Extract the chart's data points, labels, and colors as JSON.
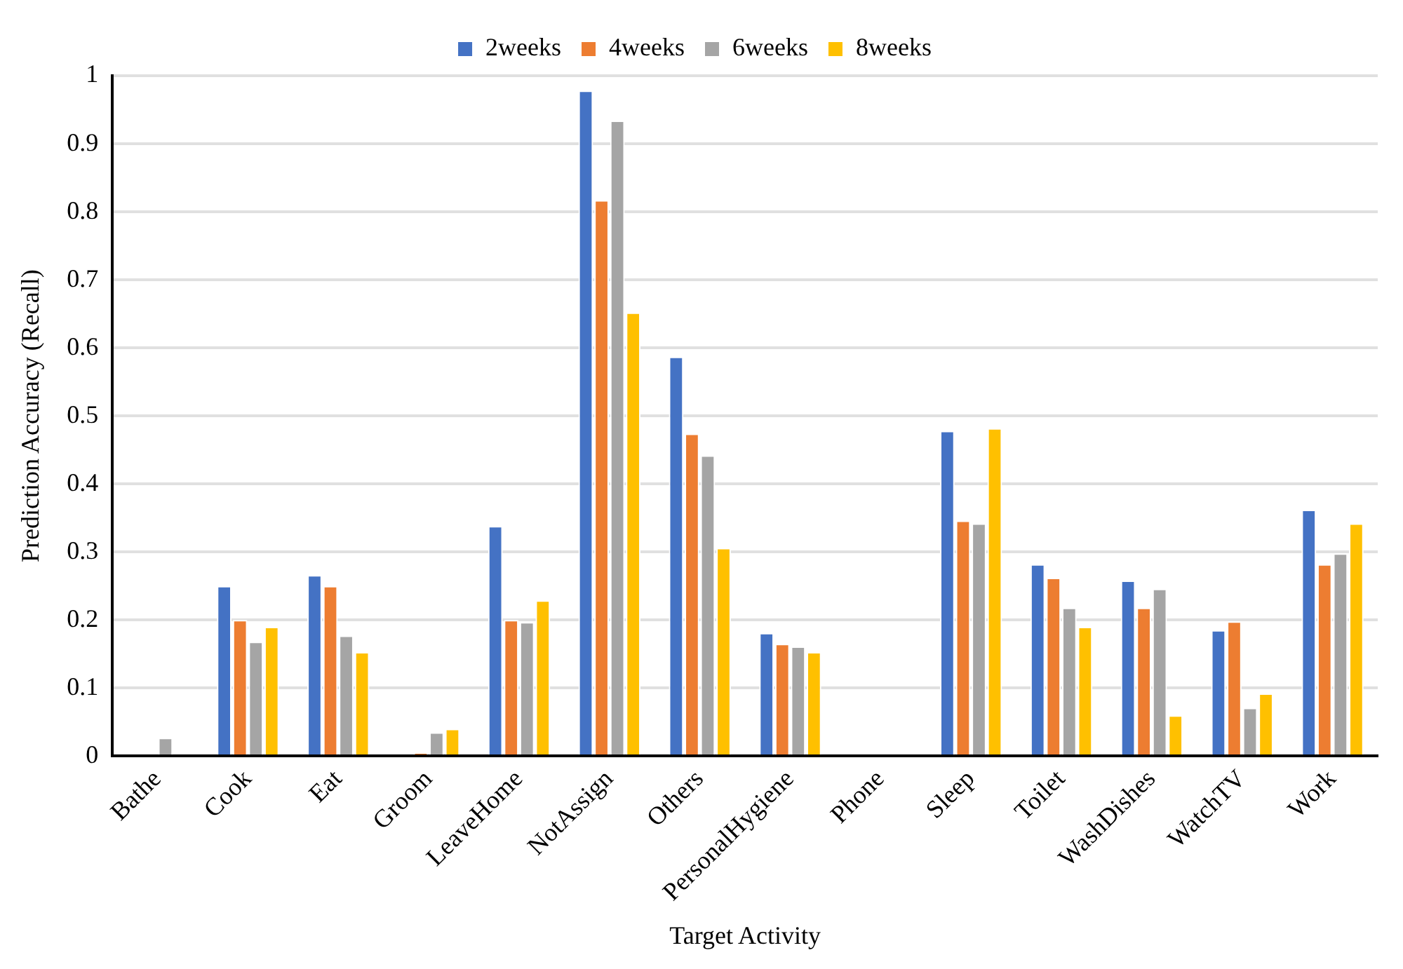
{
  "chart_data": {
    "type": "bar",
    "xlabel": "Target Activity",
    "ylabel": "Prediction Accuracy (Recall)",
    "categories": [
      "Bathe",
      "Cook",
      "Eat",
      "Groom",
      "LeaveHome",
      "NotAssign",
      "Others",
      "PersonalHygiene",
      "Phone",
      "Sleep",
      "Toilet",
      "WashDishes",
      "WatchTV",
      "Work"
    ],
    "series": [
      {
        "name": "2weeks",
        "color": "#4472c4",
        "values": [
          0,
          0.25,
          0.266,
          0,
          0.338,
          0.978,
          0.587,
          0.181,
          0,
          0.478,
          0.282,
          0.258,
          0.185,
          0.362
        ]
      },
      {
        "name": "4weeks",
        "color": "#ed7d31",
        "values": [
          null,
          0.2,
          0.25,
          0.005,
          0.2,
          0.817,
          0.474,
          0.165,
          0,
          0.346,
          0.262,
          0.218,
          0.198,
          0.282
        ]
      },
      {
        "name": "6weeks",
        "color": "#a5a5a5",
        "values": [
          0.027,
          0.168,
          0.177,
          0.035,
          0.197,
          0.934,
          0.442,
          0.161,
          null,
          0.342,
          0.218,
          0.246,
          0.071,
          0.298
        ]
      },
      {
        "name": "8weeks",
        "color": "#ffc000",
        "values": [
          0,
          0.19,
          0.153,
          0.04,
          0.229,
          0.652,
          0.306,
          0.153,
          0,
          0.482,
          0.19,
          0.06,
          0.092,
          0.342
        ]
      }
    ],
    "ylim": [
      0,
      1
    ],
    "yticks": [
      0,
      0.1,
      0.2,
      0.3,
      0.4,
      0.5,
      0.6,
      0.7,
      0.8,
      0.9,
      1
    ],
    "grid": "y",
    "legend": "top"
  }
}
